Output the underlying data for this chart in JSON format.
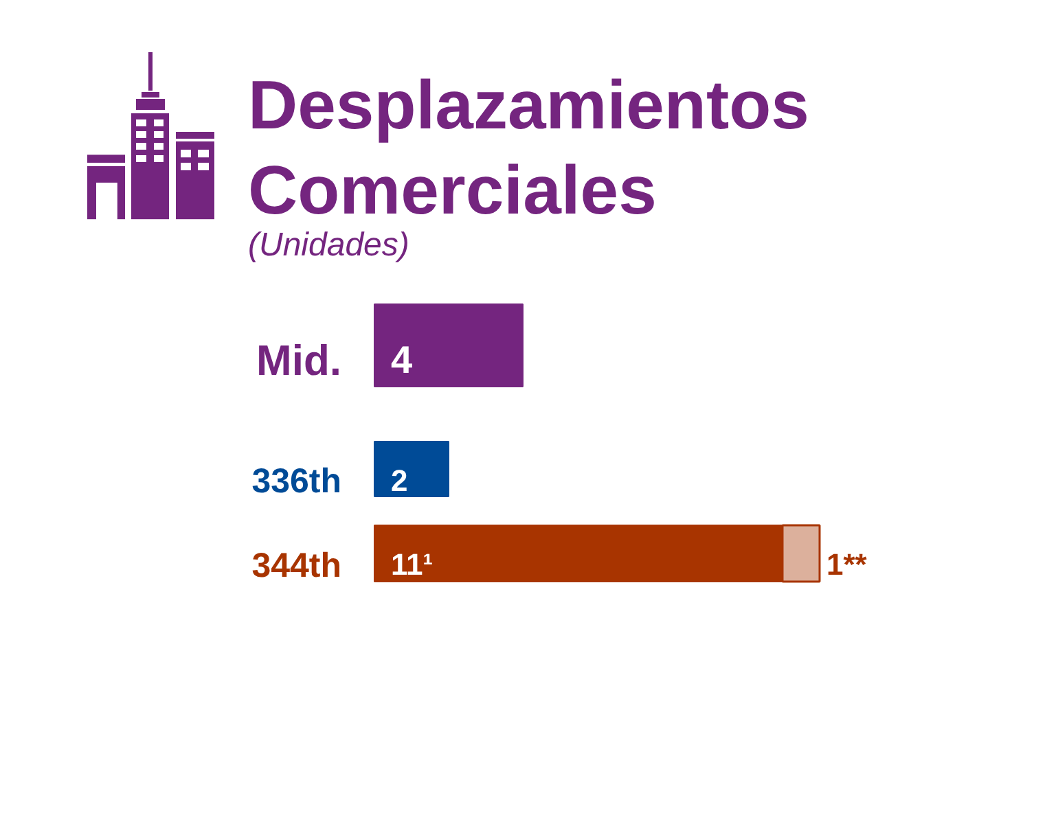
{
  "chart_data": {
    "type": "bar",
    "orientation": "horizontal",
    "stacked": true,
    "title": "Desplazamientos Comerciales",
    "subtitle": "(Unidades)",
    "tick_labels": "y",
    "categories": [
      "Mid.",
      "336th",
      "344th"
    ],
    "series": [
      {
        "colors": [
          "#74257f",
          "#004b97",
          "#a83400"
        ],
        "values": [
          4,
          2,
          11
        ],
        "value_labels": [
          "4",
          "2",
          "11¹"
        ]
      },
      {
        "color": "#dcb09c",
        "values": [
          null,
          null,
          1
        ],
        "value_labels": [
          null,
          null,
          "1**"
        ]
      }
    ]
  }
}
